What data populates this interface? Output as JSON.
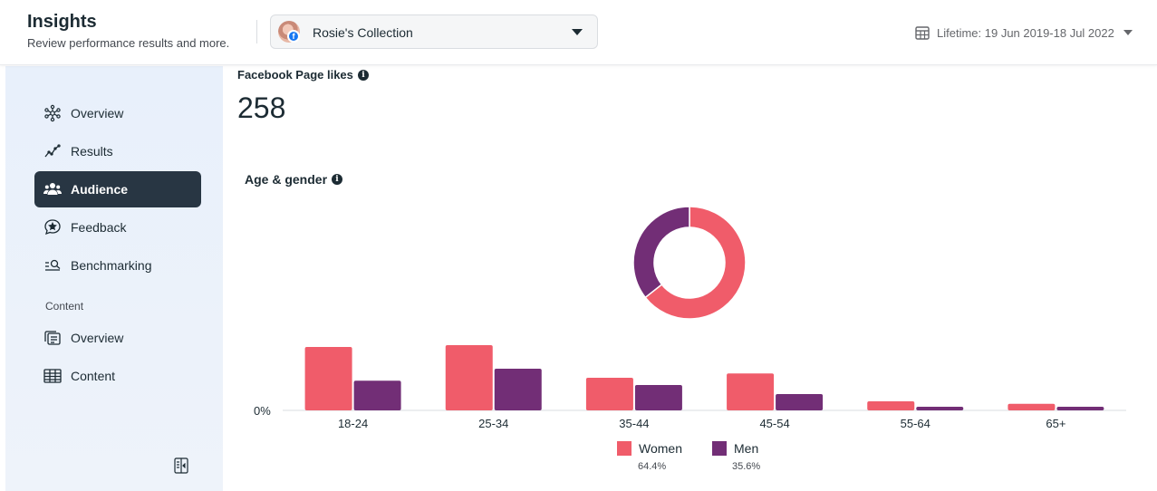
{
  "header": {
    "title": "Insights",
    "subtitle": "Review performance results and more.",
    "account_name": "Rosie's Collection",
    "date_range": "Lifetime: 19 Jun 2019-18 Jul 2022"
  },
  "sidebar": {
    "items": [
      {
        "label": "Overview",
        "icon": "network-icon",
        "active": false
      },
      {
        "label": "Results",
        "icon": "trend-line-icon",
        "active": false
      },
      {
        "label": "Audience",
        "icon": "people-icon",
        "active": true
      },
      {
        "label": "Feedback",
        "icon": "star-bubble-icon",
        "active": false
      },
      {
        "label": "Benchmarking",
        "icon": "search-list-icon",
        "active": false
      }
    ],
    "section_label": "Content",
    "content_items": [
      {
        "label": "Overview",
        "icon": "cards-icon"
      },
      {
        "label": "Content",
        "icon": "table-icon"
      }
    ]
  },
  "main": {
    "likes_label": "Facebook Page likes",
    "likes_value": "258",
    "age_gender_label": "Age & gender"
  },
  "colors": {
    "women": "#f05c6a",
    "men": "#722e76",
    "accent_nav": "#283643"
  },
  "chart_data": [
    {
      "type": "pie",
      "donut": true,
      "labels": [
        "Women",
        "Men"
      ],
      "values": [
        64.4,
        35.6
      ],
      "colors": [
        "#f05c6a",
        "#722e76"
      ]
    },
    {
      "type": "bar",
      "categories": [
        "18-24",
        "25-34",
        "35-44",
        "45-54",
        "55-64",
        "65+"
      ],
      "series": [
        {
          "name": "Women",
          "percent": "64.4%",
          "values": [
            17.5,
            18.0,
            9.0,
            10.2,
            2.5,
            1.8
          ]
        },
        {
          "name": "Men",
          "percent": "35.6%",
          "values": [
            8.2,
            11.5,
            7.0,
            4.5,
            1.0,
            1.0
          ]
        }
      ],
      "y_tick_label": "0%",
      "ylim": [
        0,
        20
      ],
      "legend": "bottom"
    }
  ]
}
